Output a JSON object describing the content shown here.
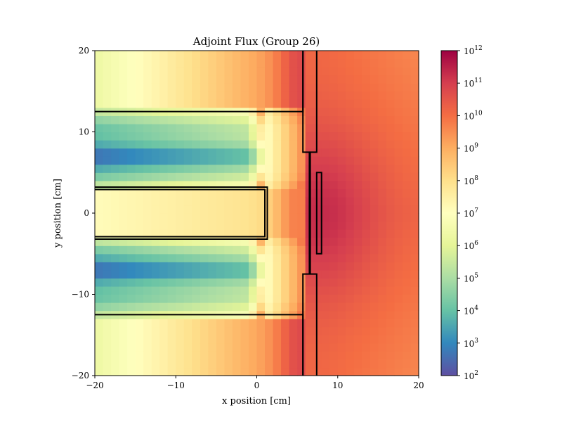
{
  "chart_data": {
    "type": "heatmap",
    "title": "Adjoint Flux (Group 26)",
    "xlabel": "x position [cm]",
    "ylabel": "y position [cm]",
    "xlim": [
      -20,
      20
    ],
    "ylim": [
      -20,
      20
    ],
    "xticks": [
      -20,
      -10,
      0,
      10,
      20
    ],
    "yticks": [
      -20,
      -10,
      0,
      10,
      20
    ],
    "xtick_labels": [
      "−20",
      "−10",
      "0",
      "10",
      "20"
    ],
    "ytick_labels": [
      "−20",
      "−10",
      "0",
      "10",
      "20"
    ],
    "colorbar": {
      "scale": "log",
      "range": [
        100,
        1000000000000
      ],
      "colormap": "Spectral_r",
      "ticks": [
        {
          "base": "10",
          "exp": "2"
        },
        {
          "base": "10",
          "exp": "3"
        },
        {
          "base": "10",
          "exp": "4"
        },
        {
          "base": "10",
          "exp": "5"
        },
        {
          "base": "10",
          "exp": "6"
        },
        {
          "base": "10",
          "exp": "7"
        },
        {
          "base": "10",
          "exp": "8"
        },
        {
          "base": "10",
          "exp": "9"
        },
        {
          "base": "10",
          "exp": "10"
        },
        {
          "base": "10",
          "exp": "11"
        },
        {
          "base": "10",
          "exp": "12"
        }
      ]
    },
    "geometry_outlines": [
      {
        "name": "upper-channel",
        "x": [
          -20,
          5.5
        ],
        "y": [
          -20,
          12.5
        ],
        "closed_edges": [
          "top",
          "right"
        ]
      },
      {
        "name": "lower-channel",
        "x": [
          -20,
          5.5
        ],
        "y": [
          -12.5,
          -20
        ],
        "closed_edges": [
          "bottom",
          "right"
        ]
      },
      {
        "name": "central-rod-outer",
        "x": [
          -20,
          1.3
        ],
        "y": [
          -3.2,
          3.2
        ]
      },
      {
        "name": "central-rod-inner",
        "x": [
          -20,
          1.0
        ],
        "y": [
          -2.9,
          2.9
        ]
      },
      {
        "name": "wall-stepped-left",
        "x": [
          5.7,
          6.5
        ],
        "y": [
          -20,
          20
        ]
      },
      {
        "name": "wall-stepped-right",
        "x": [
          7.4,
          6.5
        ],
        "y": [
          -20,
          20
        ]
      },
      {
        "name": "small-element",
        "x": [
          7.4,
          8.0
        ],
        "y": [
          -5,
          5
        ]
      }
    ]
  }
}
